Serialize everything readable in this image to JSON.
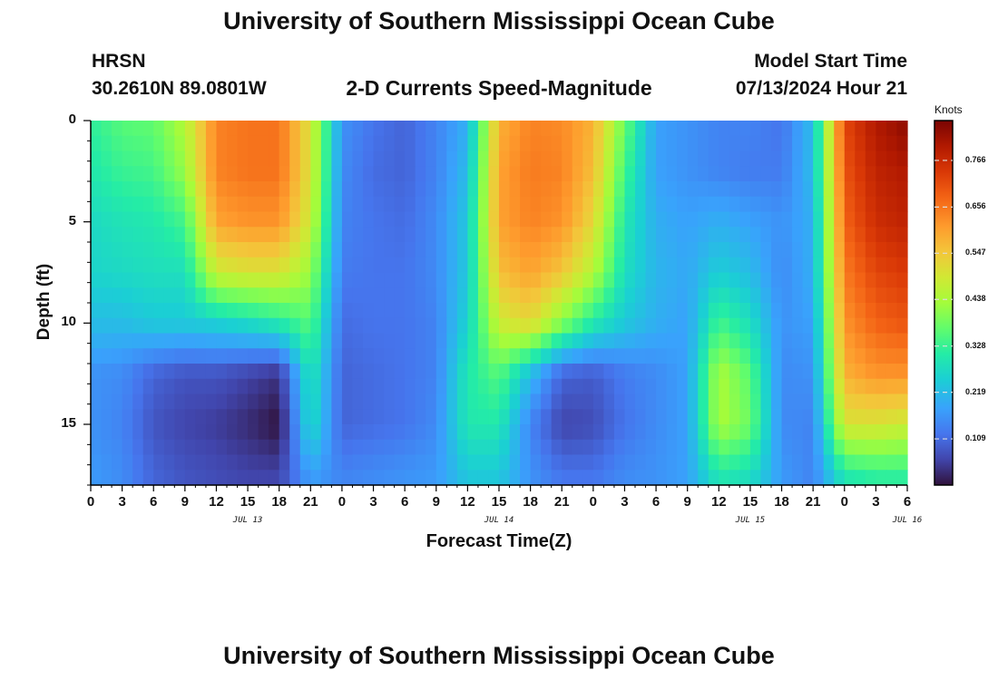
{
  "header": {
    "title": "University of Southern Mississippi Ocean Cube",
    "station": "HRSN",
    "coords": "30.2610N  89.0801W",
    "subtitle": "2-D Currents Speed-Magnitude",
    "model_label": "Model Start Time",
    "model_time": "07/13/2024 Hour 21"
  },
  "footer": {
    "title": "University of Southern Mississippi Ocean Cube"
  },
  "chart_data": {
    "type": "heatmap",
    "xlabel": "Forecast Time(Z)",
    "ylabel": "Depth (ft)",
    "x_unit": "hours UTC",
    "x_tick_labels": [
      "0",
      "3",
      "6",
      "9",
      "12",
      "15",
      "18",
      "21",
      "0",
      "3",
      "6",
      "9",
      "12",
      "15",
      "18",
      "21",
      "0",
      "3",
      "6",
      "9",
      "12",
      "15",
      "18",
      "21",
      "0",
      "3",
      "6"
    ],
    "date_labels": [
      "JUL 13",
      "JUL 14",
      "JUL 15",
      "JUL 16"
    ],
    "date_label_hours": [
      15,
      39,
      63,
      78
    ],
    "y_ticks": [
      0,
      5,
      10,
      15
    ],
    "ylim": [
      0,
      18
    ],
    "y_reversed": true,
    "colorbar": {
      "unit": "Knots",
      "ticks": [
        "0.109",
        "0.219",
        "0.328",
        "0.438",
        "0.547",
        "0.656",
        "0.766"
      ],
      "range": [
        0,
        0.86
      ]
    },
    "approx_field": {
      "hours": [
        0,
        3,
        6,
        9,
        12,
        15,
        18,
        21,
        24,
        27,
        30,
        33,
        36,
        39,
        42,
        45,
        48,
        51,
        54,
        57,
        60,
        63,
        66,
        69,
        72,
        75,
        78
      ],
      "depths_ft": [
        0,
        2.5,
        5,
        7.5,
        10,
        12.5,
        15,
        17.5
      ],
      "speed_knots": [
        [
          0.32,
          0.36,
          0.37,
          0.45,
          0.64,
          0.66,
          0.66,
          0.5,
          0.16,
          0.12,
          0.1,
          0.14,
          0.2,
          0.58,
          0.64,
          0.63,
          0.58,
          0.38,
          0.18,
          0.16,
          0.14,
          0.14,
          0.12,
          0.22,
          0.72,
          0.8,
          0.84
        ],
        [
          0.3,
          0.33,
          0.34,
          0.42,
          0.64,
          0.66,
          0.66,
          0.5,
          0.15,
          0.11,
          0.1,
          0.14,
          0.22,
          0.6,
          0.65,
          0.64,
          0.56,
          0.34,
          0.18,
          0.16,
          0.14,
          0.13,
          0.13,
          0.22,
          0.7,
          0.78,
          0.8
        ],
        [
          0.27,
          0.29,
          0.3,
          0.34,
          0.6,
          0.62,
          0.62,
          0.48,
          0.14,
          0.12,
          0.11,
          0.15,
          0.24,
          0.6,
          0.64,
          0.62,
          0.52,
          0.3,
          0.2,
          0.18,
          0.2,
          0.18,
          0.16,
          0.2,
          0.68,
          0.76,
          0.78
        ],
        [
          0.26,
          0.27,
          0.28,
          0.28,
          0.48,
          0.5,
          0.5,
          0.42,
          0.13,
          0.12,
          0.12,
          0.15,
          0.24,
          0.56,
          0.6,
          0.55,
          0.45,
          0.28,
          0.21,
          0.19,
          0.25,
          0.22,
          0.15,
          0.2,
          0.65,
          0.72,
          0.74
        ],
        [
          0.22,
          0.22,
          0.24,
          0.24,
          0.25,
          0.27,
          0.3,
          0.36,
          0.11,
          0.12,
          0.12,
          0.14,
          0.26,
          0.48,
          0.52,
          0.4,
          0.3,
          0.24,
          0.2,
          0.18,
          0.34,
          0.28,
          0.16,
          0.18,
          0.62,
          0.68,
          0.7
        ],
        [
          0.16,
          0.15,
          0.1,
          0.08,
          0.08,
          0.06,
          0.04,
          0.3,
          0.1,
          0.11,
          0.12,
          0.14,
          0.3,
          0.36,
          0.22,
          0.1,
          0.09,
          0.13,
          0.15,
          0.18,
          0.44,
          0.36,
          0.15,
          0.16,
          0.58,
          0.62,
          0.62
        ],
        [
          0.16,
          0.14,
          0.08,
          0.06,
          0.05,
          0.03,
          0.0,
          0.28,
          0.1,
          0.11,
          0.12,
          0.15,
          0.3,
          0.3,
          0.14,
          0.06,
          0.07,
          0.12,
          0.15,
          0.18,
          0.44,
          0.38,
          0.15,
          0.14,
          0.5,
          0.5,
          0.48
        ],
        [
          0.17,
          0.15,
          0.1,
          0.08,
          0.07,
          0.06,
          0.06,
          0.18,
          0.14,
          0.15,
          0.16,
          0.17,
          0.24,
          0.24,
          0.16,
          0.12,
          0.12,
          0.15,
          0.16,
          0.18,
          0.3,
          0.28,
          0.17,
          0.14,
          0.3,
          0.32,
          0.32
        ]
      ]
    }
  },
  "colors": {
    "grid": "#cccccc",
    "text": "#111111",
    "background": "#ffffff"
  }
}
